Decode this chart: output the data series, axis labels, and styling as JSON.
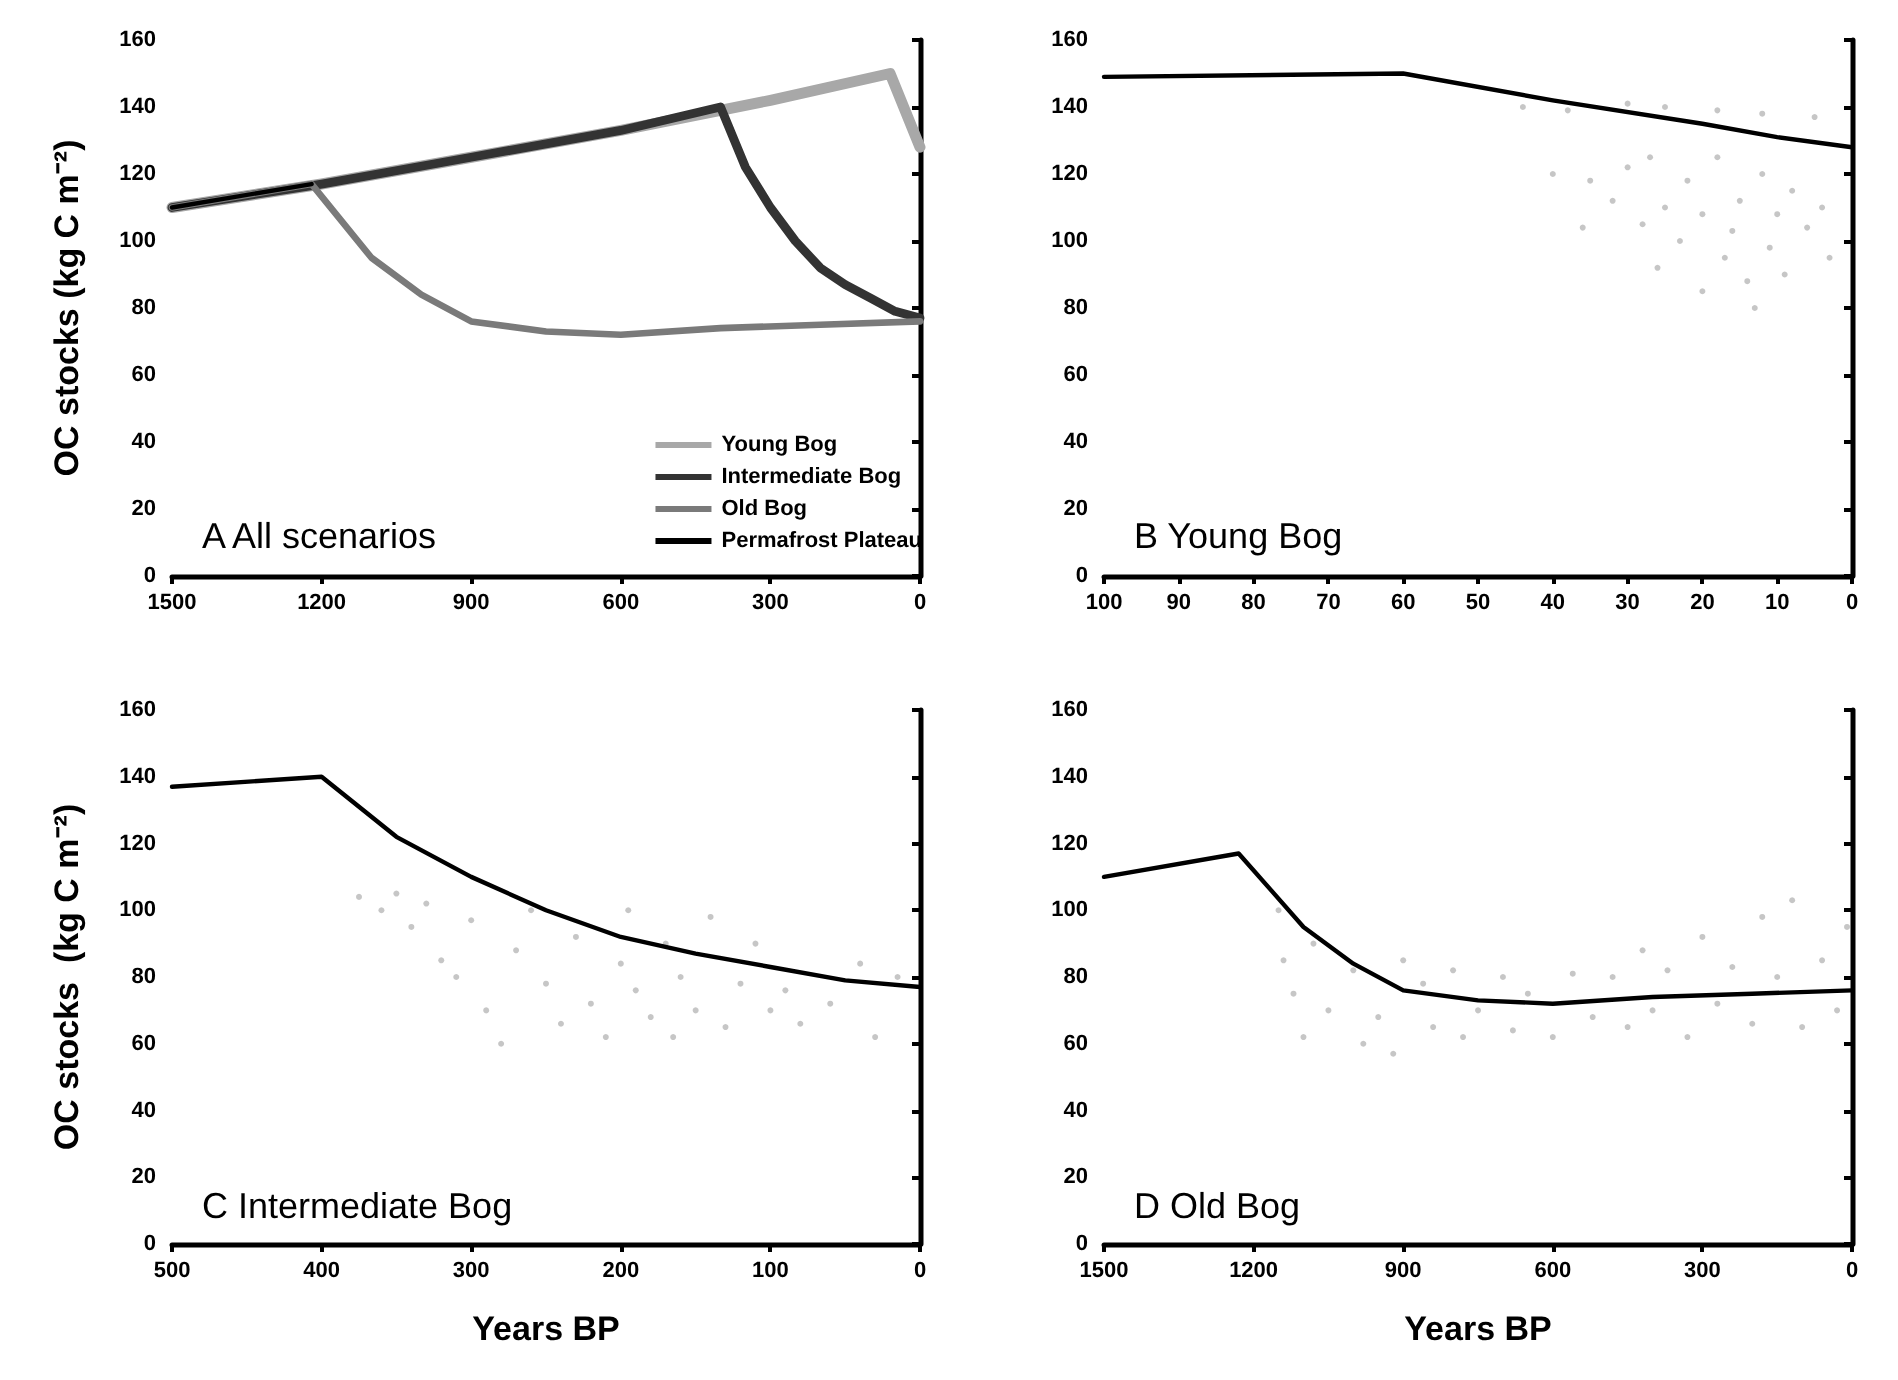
{
  "chart_data": [
    {
      "type": "line",
      "title": "A All scenarios",
      "ylabel": "OC stocks (kg C m⁻²)",
      "xlim": [
        1500,
        0
      ],
      "xticks": [
        1500,
        1200,
        900,
        600,
        300,
        0
      ],
      "ylim": [
        0,
        160
      ],
      "yticks": [
        0,
        20,
        40,
        60,
        80,
        100,
        120,
        140,
        160
      ],
      "grid": false,
      "marker": "none",
      "legend": "bottom right",
      "line_style": "solid",
      "series": [
        {
          "name": "Young Bog",
          "color": "#a8a8a8",
          "x": [
            1500,
            1200,
            900,
            600,
            300,
            60,
            0
          ],
          "values": [
            110,
            117,
            125,
            133,
            142,
            150,
            128
          ]
        },
        {
          "name": "Intermediate Bog",
          "color": "#333333",
          "x": [
            1500,
            1200,
            900,
            600,
            400,
            350,
            300,
            250,
            200,
            150,
            100,
            50,
            0
          ],
          "values": [
            110,
            117,
            125,
            133,
            140,
            122,
            110,
            100,
            92,
            87,
            83,
            79,
            77
          ]
        },
        {
          "name": "Old Bog",
          "color": "#7a7a7a",
          "x": [
            1500,
            1220,
            1100,
            1000,
            900,
            750,
            600,
            400,
            200,
            0
          ],
          "values": [
            110,
            117,
            95,
            84,
            76,
            73,
            72,
            74,
            75,
            76
          ]
        },
        {
          "name": "Permafrost Plateau",
          "color": "#000000",
          "x": [
            1500,
            1220
          ],
          "values": [
            110,
            117
          ]
        }
      ]
    },
    {
      "type": "line",
      "title": "B Young Bog",
      "xlim": [
        100,
        0
      ],
      "xticks": [
        100,
        90,
        80,
        70,
        60,
        50,
        40,
        30,
        20,
        10,
        0
      ],
      "ylim": [
        0,
        160
      ],
      "yticks": [
        0,
        20,
        40,
        60,
        80,
        100,
        120,
        140,
        160
      ],
      "grid": false,
      "marker": "none",
      "line_style": "solid",
      "series": [
        {
          "type": "scatter",
          "marker": "circle",
          "color": "#b8b8b8",
          "x": [
            44,
            38,
            30,
            25,
            18,
            12,
            5,
            40,
            35,
            32,
            30,
            28,
            27,
            25,
            23,
            22,
            20,
            18,
            17,
            16,
            15,
            14,
            13,
            12,
            11,
            10,
            9,
            8,
            6,
            4,
            3,
            26,
            20,
            36
          ],
          "values": [
            140,
            139,
            141,
            140,
            139,
            138,
            137,
            120,
            118,
            112,
            122,
            105,
            125,
            110,
            100,
            118,
            108,
            125,
            95,
            103,
            112,
            88,
            80,
            120,
            98,
            108,
            90,
            115,
            104,
            110,
            95,
            92,
            85,
            104
          ]
        },
        {
          "color": "#000000",
          "x": [
            100,
            60,
            40,
            20,
            10,
            0
          ],
          "values": [
            149,
            150,
            142,
            135,
            131,
            128
          ]
        }
      ]
    },
    {
      "type": "line",
      "title": "C Intermediate Bog",
      "ylabel": "OC stocks  (kg C m⁻²)",
      "xlabel": "Years BP",
      "xlim": [
        500,
        0
      ],
      "xticks": [
        500,
        400,
        300,
        200,
        100,
        0
      ],
      "ylim": [
        0,
        160
      ],
      "yticks": [
        0,
        20,
        40,
        60,
        80,
        100,
        120,
        140,
        160
      ],
      "grid": false,
      "marker": "none",
      "line_style": "solid",
      "series": [
        {
          "type": "scatter",
          "marker": "circle",
          "color": "#b8b8b8",
          "x": [
            375,
            360,
            350,
            340,
            330,
            320,
            310,
            300,
            290,
            280,
            270,
            260,
            250,
            240,
            230,
            220,
            210,
            200,
            195,
            190,
            180,
            170,
            165,
            160,
            150,
            140,
            130,
            120,
            110,
            100,
            90,
            80,
            60,
            40,
            30,
            15
          ],
          "values": [
            104,
            100,
            105,
            95,
            102,
            85,
            80,
            97,
            70,
            60,
            88,
            100,
            78,
            66,
            92,
            72,
            62,
            84,
            100,
            76,
            68,
            90,
            62,
            80,
            70,
            98,
            65,
            78,
            90,
            70,
            76,
            66,
            72,
            84,
            62,
            80
          ]
        },
        {
          "color": "#000000",
          "x": [
            500,
            400,
            350,
            300,
            250,
            200,
            150,
            100,
            50,
            0
          ],
          "values": [
            137,
            140,
            122,
            110,
            100,
            92,
            87,
            83,
            79,
            77
          ]
        }
      ]
    },
    {
      "type": "line",
      "title": "D Old Bog",
      "xlabel": "Years BP",
      "xlim": [
        1500,
        0
      ],
      "xticks": [
        1500,
        1200,
        900,
        600,
        300,
        0
      ],
      "ylim": [
        0,
        160
      ],
      "yticks": [
        0,
        20,
        40,
        60,
        80,
        100,
        120,
        140,
        160
      ],
      "grid": false,
      "marker": "none",
      "line_style": "solid",
      "series": [
        {
          "type": "scatter",
          "marker": "circle",
          "color": "#b8b8b8",
          "x": [
            1150,
            1140,
            1120,
            1100,
            1080,
            1050,
            1000,
            980,
            950,
            920,
            900,
            860,
            840,
            800,
            780,
            750,
            700,
            680,
            650,
            600,
            560,
            520,
            480,
            450,
            420,
            400,
            370,
            330,
            300,
            270,
            240,
            200,
            180,
            150,
            120,
            100,
            60,
            30,
            10
          ],
          "values": [
            100,
            85,
            75,
            62,
            90,
            70,
            82,
            60,
            68,
            57,
            85,
            78,
            65,
            82,
            62,
            70,
            80,
            64,
            75,
            62,
            81,
            68,
            80,
            65,
            88,
            70,
            82,
            62,
            92,
            72,
            83,
            66,
            98,
            80,
            103,
            65,
            85,
            70,
            95
          ]
        },
        {
          "color": "#000000",
          "x": [
            1500,
            1230,
            1100,
            1000,
            900,
            750,
            600,
            400,
            200,
            0
          ],
          "values": [
            110,
            117,
            95,
            84,
            76,
            73,
            72,
            74,
            75,
            76
          ]
        }
      ]
    }
  ]
}
